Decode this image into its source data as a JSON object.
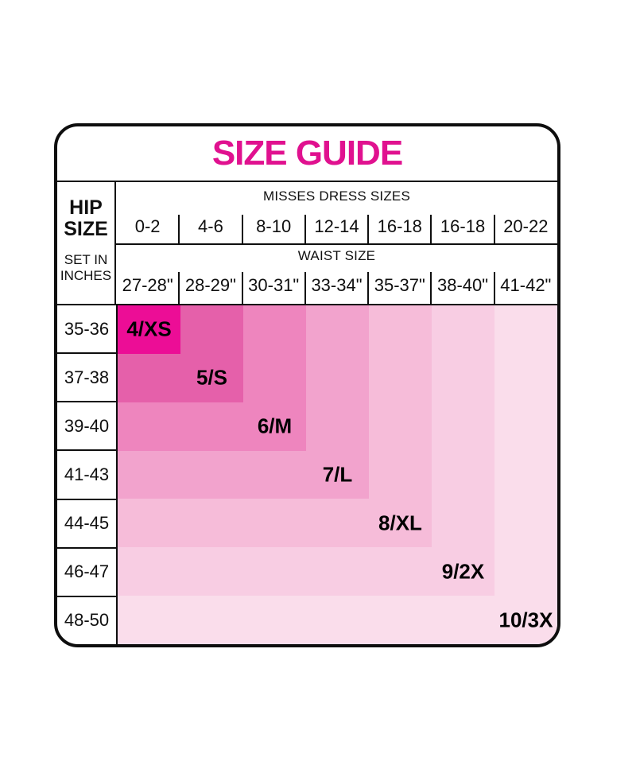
{
  "title": "SIZE GUIDE",
  "colors": {
    "accent": "#E0118F",
    "text": "#101010",
    "border": "#0E0E0E",
    "background": "#FFFFFF"
  },
  "hip_header": {
    "line1": "HIP",
    "line2": "SIZE",
    "sub1": "SET IN",
    "sub2": "INCHES"
  },
  "dress": {
    "label": "MISSES DRESS SIZES",
    "values": [
      "0-2",
      "4-6",
      "8-10",
      "12-14",
      "16-18",
      "16-18",
      "20-22"
    ]
  },
  "waist": {
    "label": "WAIST SIZE",
    "values": [
      "27-28\"",
      "28-29\"",
      "30-31\"",
      "33-34\"",
      "35-37\"",
      "38-40\"",
      "41-42\""
    ]
  },
  "hip_rows": [
    "35-36",
    "37-38",
    "39-40",
    "41-43",
    "44-45",
    "46-47",
    "48-50"
  ],
  "sizes": [
    {
      "label": "4/XS",
      "color": "#EC0D96"
    },
    {
      "label": "5/S",
      "color": "#E560AA"
    },
    {
      "label": "6/M",
      "color": "#EE85BE"
    },
    {
      "label": "7/L",
      "color": "#F2A3CD"
    },
    {
      "label": "8/XL",
      "color": "#F6BCD9"
    },
    {
      "label": "9/2X",
      "color": "#F8CDE3"
    },
    {
      "label": "10/3X",
      "color": "#FADDEB"
    }
  ],
  "chart_data": {
    "type": "heatmap",
    "title": "SIZE GUIDE",
    "row_axis_label": "HIP SIZE SET IN INCHES",
    "rows": [
      "35-36",
      "37-38",
      "39-40",
      "41-43",
      "44-45",
      "46-47",
      "48-50"
    ],
    "column_groups": [
      {
        "label": "MISSES DRESS SIZES",
        "ticks": [
          "0-2",
          "4-6",
          "8-10",
          "12-14",
          "16-18",
          "16-18",
          "20-22"
        ]
      },
      {
        "label": "WAIST SIZE",
        "ticks": [
          "27-28\"",
          "28-29\"",
          "30-31\"",
          "33-34\"",
          "35-37\"",
          "38-40\"",
          "41-42\""
        ]
      }
    ],
    "cell_rule": "cell(row r, col c) is colored by size index max(r,c); size label printed on diagonal cell (k,k); shades go darkest (4/XS, top-left) to lightest (10/3X, bottom-right)",
    "sizes": [
      {
        "label": "4/XS",
        "color": "#EC0D96",
        "hip": "35-36",
        "dress": "0-2",
        "waist": "27-28\""
      },
      {
        "label": "5/S",
        "color": "#E560AA",
        "hip": "37-38",
        "dress": "4-6",
        "waist": "28-29\""
      },
      {
        "label": "6/M",
        "color": "#EE85BE",
        "hip": "39-40",
        "dress": "8-10",
        "waist": "30-31\""
      },
      {
        "label": "7/L",
        "color": "#F2A3CD",
        "hip": "41-43",
        "dress": "12-14",
        "waist": "33-34\""
      },
      {
        "label": "8/XL",
        "color": "#F6BCD9",
        "hip": "44-45",
        "dress": "16-18",
        "waist": "35-37\""
      },
      {
        "label": "9/2X",
        "color": "#F8CDE3",
        "hip": "46-47",
        "dress": "16-18",
        "waist": "38-40\""
      },
      {
        "label": "10/3X",
        "color": "#FADDEB",
        "hip": "48-50",
        "dress": "20-22",
        "waist": "41-42\""
      }
    ],
    "legend_position": "none",
    "grid": "black rules on header and row-label cells only; color matrix has no gridlines"
  }
}
